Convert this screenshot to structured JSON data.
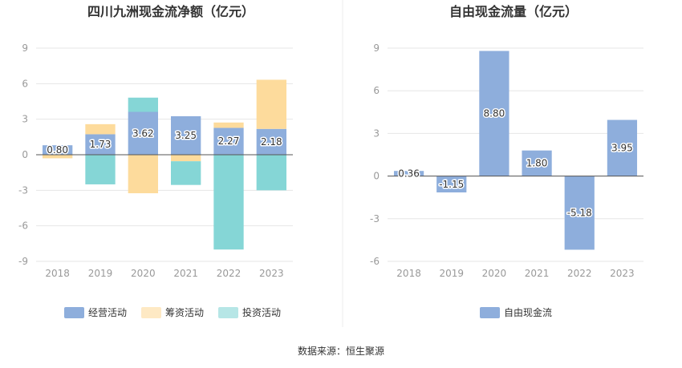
{
  "chart_data": [
    {
      "type": "bar",
      "stacked": true,
      "title": "四川九洲现金流净额（亿元）",
      "categories": [
        "2018",
        "2019",
        "2020",
        "2021",
        "2022",
        "2023"
      ],
      "ylim": [
        -9,
        9
      ],
      "yticks": [
        "9",
        "6",
        "3",
        "0",
        "-3",
        "-6",
        "-9"
      ],
      "legend_position": "bottom",
      "series": [
        {
          "name": "经营活动",
          "color": "#8eaedc",
          "values": [
            0.8,
            1.73,
            3.62,
            3.25,
            2.27,
            2.18
          ],
          "labels": [
            "0.80",
            "1.73",
            "3.62",
            "3.25",
            "2.27",
            "2.18"
          ]
        },
        {
          "name": "筹资活动",
          "color": "#fddb9c",
          "values": [
            -0.3,
            0.85,
            -3.25,
            -0.55,
            0.45,
            4.15
          ]
        },
        {
          "name": "投资活动",
          "color": "#85d6d6",
          "values": [
            0.0,
            -2.5,
            1.2,
            -2.0,
            -8.0,
            -3.0
          ]
        }
      ]
    },
    {
      "type": "bar",
      "title": "自由现金流量（亿元）",
      "categories": [
        "2018",
        "2019",
        "2020",
        "2021",
        "2022",
        "2023"
      ],
      "ylim": [
        -6,
        9
      ],
      "yticks": [
        "9",
        "6",
        "3",
        "0",
        "-3",
        "-6"
      ],
      "legend_position": "bottom",
      "series": [
        {
          "name": "自由现金流",
          "color": "#8eaedc",
          "values": [
            0.36,
            -1.15,
            8.8,
            1.8,
            -5.18,
            3.95
          ],
          "labels": [
            "0.36",
            "-1.15",
            "8.80",
            "1.80",
            "-5.18",
            "3.95"
          ]
        }
      ]
    }
  ],
  "footer": {
    "source": "数据来源：恒生聚源"
  }
}
